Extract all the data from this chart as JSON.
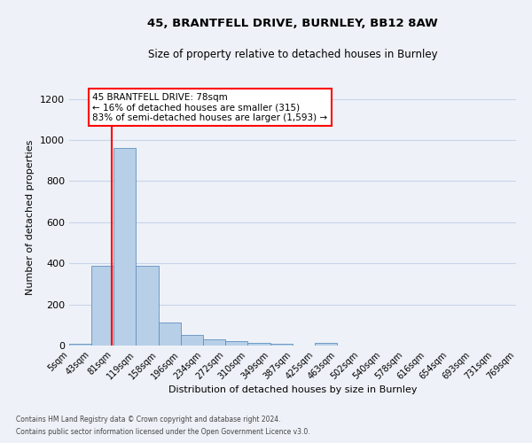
{
  "title1": "45, BRANTFELL DRIVE, BURNLEY, BB12 8AW",
  "title2": "Size of property relative to detached houses in Burnley",
  "xlabel": "Distribution of detached houses by size in Burnley",
  "ylabel": "Number of detached properties",
  "footnote1": "Contains HM Land Registry data © Crown copyright and database right 2024.",
  "footnote2": "Contains public sector information licensed under the Open Government Licence v3.0.",
  "annotation_line1": "45 BRANTFELL DRIVE: 78sqm",
  "annotation_line2": "← 16% of detached houses are smaller (315)",
  "annotation_line3": "83% of semi-detached houses are larger (1,593) →",
  "property_size": 78,
  "bin_edges": [
    5,
    43,
    81,
    119,
    158,
    196,
    234,
    272,
    310,
    349,
    387,
    425,
    463,
    502,
    540,
    578,
    616,
    654,
    693,
    731,
    769
  ],
  "bar_heights": [
    10,
    390,
    960,
    390,
    110,
    50,
    30,
    20,
    15,
    10,
    0,
    15,
    0,
    0,
    0,
    0,
    0,
    0,
    0,
    0
  ],
  "bar_color": "#b8cfe8",
  "bar_edge_color": "#6090c0",
  "highlight_line_color": "#ff0000",
  "background_color": "#eef2f8",
  "annotation_box_color": "#ffffff",
  "annotation_box_edge": "#ff0000",
  "ylim": [
    0,
    1250
  ],
  "yticks": [
    0,
    200,
    400,
    600,
    800,
    1000,
    1200
  ]
}
